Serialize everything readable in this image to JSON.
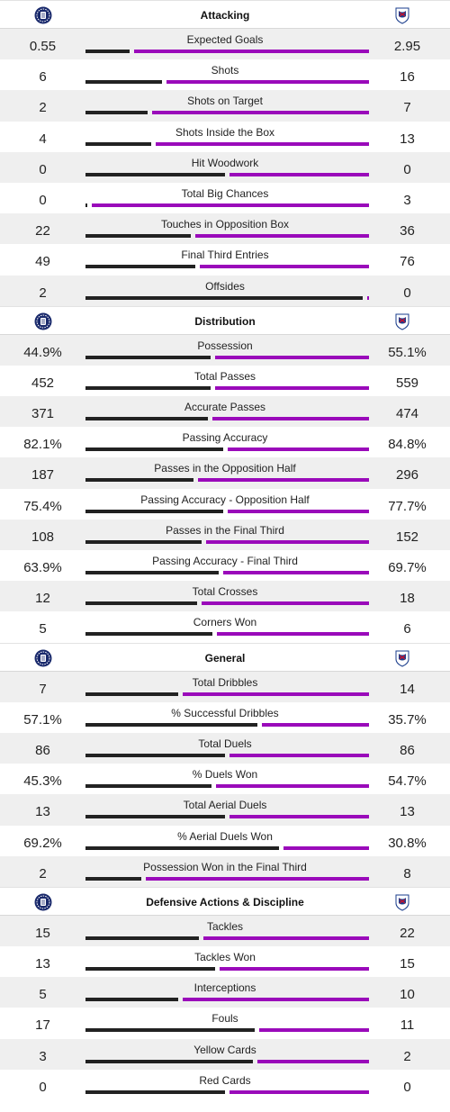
{
  "colors": {
    "home": "#222222",
    "away": "#9a0aba"
  },
  "icons": {
    "home_crest": "home-team-crest",
    "away_crest": "away-team-crest"
  },
  "sections": [
    {
      "title": "Attacking",
      "stats": [
        {
          "label": "Expected Goals",
          "home": "0.55",
          "away": "2.95",
          "home_share": 0.157
        },
        {
          "label": "Shots",
          "home": "6",
          "away": "16",
          "home_share": 0.273
        },
        {
          "label": "Shots on Target",
          "home": "2",
          "away": "7",
          "home_share": 0.222
        },
        {
          "label": "Shots Inside the Box",
          "home": "4",
          "away": "13",
          "home_share": 0.235
        },
        {
          "label": "Hit Woodwork",
          "home": "0",
          "away": "0",
          "home_share": 0.5
        },
        {
          "label": "Total Big Chances",
          "home": "0",
          "away": "3",
          "home_share": 0.0
        },
        {
          "label": "Touches in Opposition Box",
          "home": "22",
          "away": "36",
          "home_share": 0.379
        },
        {
          "label": "Final Third Entries",
          "home": "49",
          "away": "76",
          "home_share": 0.392
        },
        {
          "label": "Offsides",
          "home": "2",
          "away": "0",
          "home_share": 1.0
        }
      ]
    },
    {
      "title": "Distribution",
      "stats": [
        {
          "label": "Possession",
          "home": "44.9%",
          "away": "55.1%",
          "home_share": 0.449
        },
        {
          "label": "Total Passes",
          "home": "452",
          "away": "559",
          "home_share": 0.447
        },
        {
          "label": "Accurate Passes",
          "home": "371",
          "away": "474",
          "home_share": 0.439
        },
        {
          "label": "Passing Accuracy",
          "home": "82.1%",
          "away": "84.8%",
          "home_share": 0.492
        },
        {
          "label": "Passes in the Opposition Half",
          "home": "187",
          "away": "296",
          "home_share": 0.387
        },
        {
          "label": "Passing Accuracy - Opposition Half",
          "home": "75.4%",
          "away": "77.7%",
          "home_share": 0.492
        },
        {
          "label": "Passes in the Final Third",
          "home": "108",
          "away": "152",
          "home_share": 0.415
        },
        {
          "label": "Passing Accuracy - Final Third",
          "home": "63.9%",
          "away": "69.7%",
          "home_share": 0.478
        },
        {
          "label": "Total Crosses",
          "home": "12",
          "away": "18",
          "home_share": 0.4
        },
        {
          "label": "Corners Won",
          "home": "5",
          "away": "6",
          "home_share": 0.455
        }
      ]
    },
    {
      "title": "General",
      "stats": [
        {
          "label": "Total Dribbles",
          "home": "7",
          "away": "14",
          "home_share": 0.333
        },
        {
          "label": "% Successful Dribbles",
          "home": "57.1%",
          "away": "35.7%",
          "home_share": 0.615
        },
        {
          "label": "Total Duels",
          "home": "86",
          "away": "86",
          "home_share": 0.5
        },
        {
          "label": "% Duels Won",
          "home": "45.3%",
          "away": "54.7%",
          "home_share": 0.453
        },
        {
          "label": "Total Aerial Duels",
          "home": "13",
          "away": "13",
          "home_share": 0.5
        },
        {
          "label": "% Aerial Duels Won",
          "home": "69.2%",
          "away": "30.8%",
          "home_share": 0.692
        },
        {
          "label": "Possession Won in the Final Third",
          "home": "2",
          "away": "8",
          "home_share": 0.2
        }
      ]
    },
    {
      "title": "Defensive Actions & Discipline",
      "stats": [
        {
          "label": "Tackles",
          "home": "15",
          "away": "22",
          "home_share": 0.405
        },
        {
          "label": "Tackles Won",
          "home": "13",
          "away": "15",
          "home_share": 0.464
        },
        {
          "label": "Interceptions",
          "home": "5",
          "away": "10",
          "home_share": 0.333
        },
        {
          "label": "Fouls",
          "home": "17",
          "away": "11",
          "home_share": 0.607
        },
        {
          "label": "Yellow Cards",
          "home": "3",
          "away": "2",
          "home_share": 0.6
        },
        {
          "label": "Red Cards",
          "home": "0",
          "away": "0",
          "home_share": 0.5
        }
      ]
    }
  ]
}
